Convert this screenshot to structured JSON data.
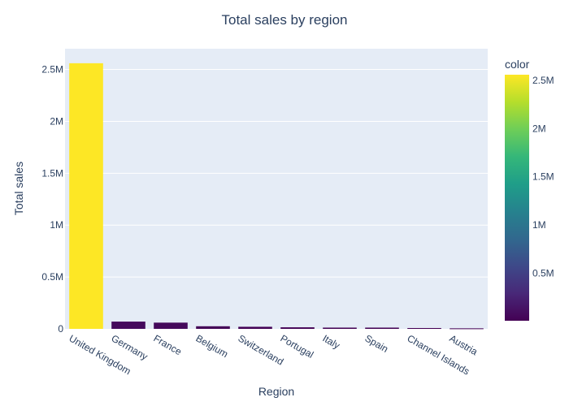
{
  "chart_data": {
    "type": "bar",
    "title": "Total sales by region",
    "xlabel": "Region",
    "ylabel": "Total sales",
    "ylim": [
      0,
      2700000
    ],
    "yticks": [
      {
        "value": 0,
        "label": "0"
      },
      {
        "value": 500000,
        "label": "0.5M"
      },
      {
        "value": 1000000,
        "label": "1M"
      },
      {
        "value": 1500000,
        "label": "1.5M"
      },
      {
        "value": 2000000,
        "label": "2M"
      },
      {
        "value": 2500000,
        "label": "2.5M"
      }
    ],
    "categories": [
      "United Kingdom",
      "Germany",
      "France",
      "Belgium",
      "Switzerland",
      "Portugal",
      "Italy",
      "Spain",
      "Channel Islands",
      "Austria"
    ],
    "values": [
      2560000,
      70000,
      60000,
      25000,
      20000,
      15000,
      12000,
      12000,
      8000,
      5000
    ],
    "grid": true,
    "colorbar": {
      "title": "color",
      "colorscale": "Viridis",
      "range": [
        5000,
        2560000
      ],
      "ticks": [
        {
          "value": 500000,
          "label": "0.5M"
        },
        {
          "value": 1000000,
          "label": "1M"
        },
        {
          "value": 1500000,
          "label": "1.5M"
        },
        {
          "value": 2000000,
          "label": "2M"
        },
        {
          "value": 2500000,
          "label": "2.5M"
        }
      ]
    },
    "colors": {
      "plot_bg": "#e5ecf6",
      "grid": "#ffffff",
      "text": "#2a3f5f"
    }
  }
}
